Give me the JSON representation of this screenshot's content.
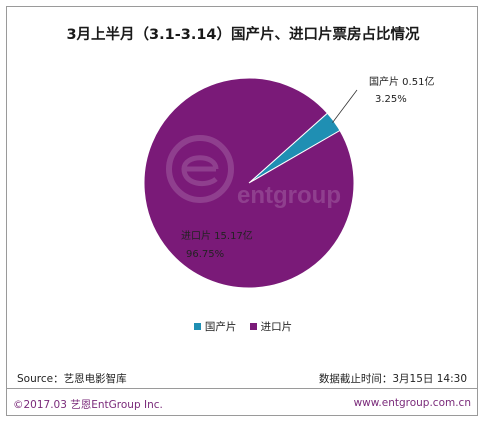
{
  "chart_data": {
    "type": "pie",
    "title": "3月上半月（3.1-3.14）国产片、进口片票房占比情况",
    "slices": [
      {
        "name": "国产片",
        "value_label": "0.51亿",
        "value": 0.51,
        "percent": 3.25,
        "percent_label": "3.25%",
        "color": "#1f8fb3"
      },
      {
        "name": "进口片",
        "value_label": "15.17亿",
        "value": 15.17,
        "percent": 96.75,
        "percent_label": "96.75%",
        "color": "#7a1a78"
      }
    ],
    "legend": [
      "国产片",
      "进口片"
    ],
    "legend_position": "bottom"
  },
  "watermark": {
    "text": "entgroup"
  },
  "footer": {
    "source": "Source：艺恩电影智库",
    "cutoff": "数据截止时间：3月15日  14:30",
    "copyright": "©2017.03 艺恩EntGroup Inc.",
    "website": "www.entgroup.com.cn"
  }
}
